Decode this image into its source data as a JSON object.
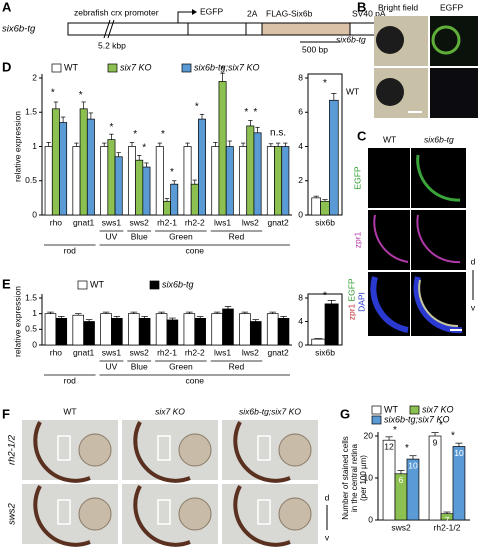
{
  "panels": {
    "A": {
      "letter": "A",
      "construct": "six6b-tg",
      "promoter": "zebrafish crx promoter",
      "egfp": "EGFP",
      "p2a": "2A",
      "flag": "FLAG-Six6b",
      "polyA": "SV40 pA",
      "promoter_size": "5.2 kbp",
      "scale": "500 bp"
    },
    "B": {
      "letter": "B",
      "col1": "Bright field",
      "col2": "EGFP",
      "row1": "six6b-tg",
      "row2": "WT"
    },
    "C": {
      "letter": "C",
      "col1": "WT",
      "col2": "six6b-tg",
      "row1": "EGFP",
      "row2": "zpr1",
      "row3a": "EGFP",
      "row3b": "zpr1",
      "row3c": "DAPI",
      "dorsal": "d",
      "ventral": "v"
    },
    "D": {
      "letter": "D"
    },
    "E": {
      "letter": "E"
    },
    "F": {
      "letter": "F",
      "col1": "WT",
      "col2": "six7 KO",
      "col3": "six6b-tg;six7 KO",
      "row1": "rh2-1/2",
      "row2": "sws2",
      "dorsal": "d",
      "ventral": "v"
    },
    "G": {
      "letter": "G"
    }
  },
  "chart_data": [
    {
      "type": "bar",
      "y_label": "relative expression",
      "categories": [
        "rho",
        "gnat1",
        "sws1",
        "sws2",
        "rh2-1",
        "rh2-2",
        "lws1",
        "lws2",
        "gnat2"
      ],
      "subgroup_labels": [
        "UV",
        "Blue",
        "Green",
        "Red"
      ],
      "group_labels": [
        "rod",
        "cone"
      ],
      "series": [
        {
          "name": "WT",
          "color": "#ffffff",
          "values": [
            1,
            1,
            1,
            1,
            1,
            1,
            1,
            1,
            1
          ],
          "errors": [
            0.06,
            0.05,
            0.05,
            0.06,
            0.05,
            0.05,
            0.06,
            0.05,
            0.04
          ]
        },
        {
          "name": "six7 KO",
          "color": "#8cc152",
          "values": [
            1.55,
            1.55,
            1.1,
            0.8,
            0.2,
            0.45,
            1.95,
            1.3,
            1
          ],
          "errors": [
            0.1,
            0.1,
            0.08,
            0.07,
            0.04,
            0.06,
            0.12,
            0.08,
            0.05
          ]
        },
        {
          "name": "six6b-tg;six7 KO",
          "color": "#5b9bd5",
          "values": [
            1.35,
            1.4,
            0.85,
            0.7,
            0.45,
            1.4,
            1,
            1.2,
            1
          ],
          "errors": [
            0.08,
            0.09,
            0.06,
            0.06,
            0.05,
            0.07,
            0.08,
            0.08,
            0.05
          ]
        }
      ],
      "ylim": [
        0,
        2
      ],
      "yticks": [
        0,
        0.5,
        1,
        1.5,
        2
      ],
      "annotations": [
        "*",
        "*",
        "*",
        "*",
        "*",
        "*",
        "*",
        "*",
        "*",
        "*",
        "*",
        "n.s."
      ]
    },
    {
      "type": "bar",
      "categories": [
        "six6b"
      ],
      "series": [
        {
          "color": "#ffffff",
          "values": [
            1
          ],
          "errors": [
            0.1
          ]
        },
        {
          "color": "#8cc152",
          "values": [
            0.8
          ],
          "errors": [
            0.1
          ]
        },
        {
          "color": "#5b9bd5",
          "values": [
            6.7
          ],
          "errors": [
            0.4
          ]
        }
      ],
      "ylim": [
        0,
        8
      ],
      "yticks": [
        0,
        2,
        4,
        6,
        8
      ],
      "annotations": [
        "*"
      ]
    },
    {
      "type": "bar",
      "y_label": "relative expression",
      "categories": [
        "rho",
        "gnat1",
        "sws1",
        "sws2",
        "rh2-1",
        "rh2-2",
        "lws1",
        "lws2",
        "gnat2"
      ],
      "subgroup_labels": [
        "UV",
        "Blue",
        "Green",
        "Red"
      ],
      "group_labels": [
        "rod",
        "cone"
      ],
      "series": [
        {
          "name": "WT",
          "color": "#ffffff",
          "values": [
            1,
            0.95,
            1,
            1,
            1,
            1,
            1,
            1,
            1
          ],
          "errors": [
            0.05,
            0.05,
            0.05,
            0.05,
            0.05,
            0.05,
            0.05,
            0.05,
            0.05
          ]
        },
        {
          "name": "six6b-tg",
          "color": "#000000",
          "values": [
            0.85,
            0.75,
            0.85,
            0.85,
            0.8,
            0.85,
            1.15,
            0.75,
            0.85
          ],
          "errors": [
            0.06,
            0.06,
            0.06,
            0.06,
            0.06,
            0.06,
            0.08,
            0.06,
            0.06
          ]
        }
      ],
      "ylim": [
        0,
        1.5
      ],
      "yticks": [
        0,
        0.5,
        1,
        1.5
      ],
      "annotations": []
    },
    {
      "type": "bar",
      "categories": [
        "six6b"
      ],
      "series": [
        {
          "color": "#ffffff",
          "values": [
            1
          ],
          "errors": [
            0.1
          ]
        },
        {
          "color": "#000000",
          "values": [
            7
          ],
          "errors": [
            0.6
          ]
        }
      ],
      "ylim": [
        0,
        8
      ],
      "yticks": [
        0,
        4,
        8
      ],
      "annotations": [
        "*"
      ]
    },
    {
      "type": "bar",
      "y_label": [
        "Number of stained cells",
        "in the central retina",
        "(per 100 µm)"
      ],
      "categories": [
        "sws2",
        "rh2-1/2"
      ],
      "series": [
        {
          "name": "WT",
          "color": "#ffffff",
          "values": [
            19,
            20
          ],
          "errors": [
            0.8,
            0.8
          ],
          "n_labels": [
            12,
            9
          ]
        },
        {
          "name": "six7 KO",
          "color": "#8cc152",
          "values": [
            11,
            1.5
          ],
          "errors": [
            0.8,
            0.4
          ],
          "n_labels": [
            6,
            7
          ]
        },
        {
          "name": "six6b-tg;six7 KO",
          "color": "#5b9bd5",
          "values": [
            14.5,
            17.5
          ],
          "errors": [
            0.8,
            0.8
          ],
          "n_labels": [
            10,
            10
          ]
        }
      ],
      "ylim": [
        0,
        20
      ],
      "yticks": [
        0,
        10,
        20
      ],
      "annotations": [
        "*",
        "*",
        "*",
        "*"
      ]
    }
  ]
}
